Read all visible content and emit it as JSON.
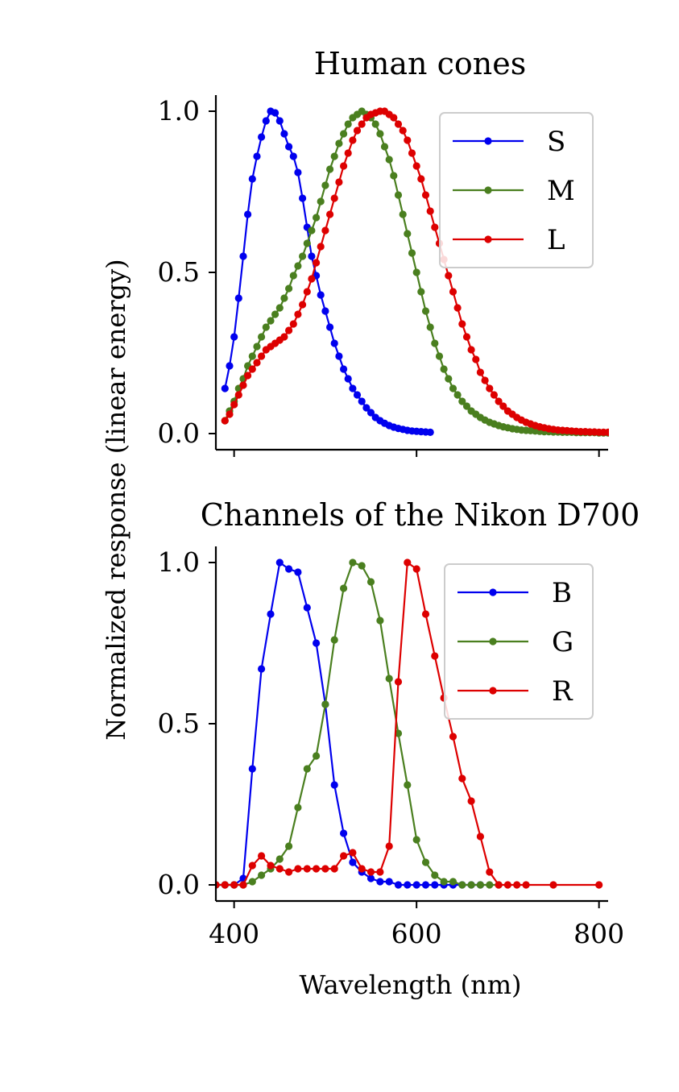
{
  "ylabel": "Normalized response (linear energy)",
  "chart_data": [
    {
      "type": "line",
      "title": "Human cones",
      "xlabel": "",
      "xlim": [
        380,
        810
      ],
      "ylim": [
        -0.05,
        1.05
      ],
      "xticks": [
        400,
        600,
        800
      ],
      "xticklabels": [
        "",
        "",
        ""
      ],
      "yticks": [
        0.0,
        0.5,
        1.0
      ],
      "yticklabels": [
        "0.0",
        "0.5",
        "1.0"
      ],
      "grid": false,
      "legend_position": "top-right",
      "series": [
        {
          "name": "S",
          "color": "#0000ee",
          "x": [
            390,
            395,
            400,
            405,
            410,
            415,
            420,
            425,
            430,
            435,
            440,
            445,
            450,
            455,
            460,
            465,
            470,
            475,
            480,
            485,
            490,
            495,
            500,
            505,
            510,
            515,
            520,
            525,
            530,
            535,
            540,
            545,
            550,
            555,
            560,
            565,
            570,
            575,
            580,
            585,
            590,
            595,
            600,
            605,
            610,
            615
          ],
          "y": [
            0.14,
            0.21,
            0.3,
            0.42,
            0.55,
            0.68,
            0.79,
            0.86,
            0.92,
            0.97,
            1.0,
            0.995,
            0.97,
            0.93,
            0.89,
            0.86,
            0.81,
            0.73,
            0.64,
            0.55,
            0.49,
            0.43,
            0.38,
            0.33,
            0.28,
            0.24,
            0.2,
            0.17,
            0.14,
            0.12,
            0.1,
            0.08,
            0.065,
            0.05,
            0.04,
            0.032,
            0.025,
            0.02,
            0.016,
            0.013,
            0.01,
            0.008,
            0.007,
            0.006,
            0.005,
            0.004
          ]
        },
        {
          "name": "M",
          "color": "#4a7f1f",
          "x": [
            390,
            395,
            400,
            405,
            410,
            415,
            420,
            425,
            430,
            435,
            440,
            445,
            450,
            455,
            460,
            465,
            470,
            475,
            480,
            485,
            490,
            495,
            500,
            505,
            510,
            515,
            520,
            525,
            530,
            535,
            540,
            545,
            550,
            555,
            560,
            565,
            570,
            575,
            580,
            585,
            590,
            595,
            600,
            605,
            610,
            615,
            620,
            625,
            630,
            635,
            640,
            645,
            650,
            655,
            660,
            665,
            670,
            675,
            680,
            685,
            690,
            695,
            700,
            705,
            710,
            715,
            720,
            725,
            730,
            735,
            740,
            745,
            750,
            755,
            760,
            765,
            770,
            775,
            780,
            785,
            790,
            795,
            800,
            805,
            810,
            815,
            820,
            825,
            830
          ],
          "y": [
            0.04,
            0.07,
            0.1,
            0.14,
            0.17,
            0.21,
            0.24,
            0.27,
            0.3,
            0.33,
            0.35,
            0.37,
            0.39,
            0.42,
            0.45,
            0.49,
            0.52,
            0.55,
            0.59,
            0.63,
            0.67,
            0.72,
            0.77,
            0.82,
            0.86,
            0.9,
            0.93,
            0.96,
            0.98,
            0.99,
            1.0,
            0.99,
            0.98,
            0.96,
            0.93,
            0.89,
            0.85,
            0.8,
            0.74,
            0.68,
            0.62,
            0.56,
            0.5,
            0.44,
            0.38,
            0.33,
            0.28,
            0.24,
            0.2,
            0.17,
            0.14,
            0.12,
            0.1,
            0.085,
            0.07,
            0.06,
            0.05,
            0.042,
            0.035,
            0.03,
            0.025,
            0.021,
            0.018,
            0.015,
            0.013,
            0.011,
            0.01,
            0.009,
            0.008,
            0.007,
            0.006,
            0.006,
            0.005,
            0.005,
            0.004,
            0.004,
            0.004,
            0.003,
            0.003,
            0.003,
            0.003,
            0.003,
            0.002,
            0.002,
            0.002,
            0.002,
            0.002,
            0.002,
            0.002
          ]
        },
        {
          "name": "L",
          "color": "#dd0000",
          "x": [
            390,
            395,
            400,
            405,
            410,
            415,
            420,
            425,
            430,
            435,
            440,
            445,
            450,
            455,
            460,
            465,
            470,
            475,
            480,
            485,
            490,
            495,
            500,
            505,
            510,
            515,
            520,
            525,
            530,
            535,
            540,
            545,
            550,
            555,
            560,
            565,
            570,
            575,
            580,
            585,
            590,
            595,
            600,
            605,
            610,
            615,
            620,
            625,
            630,
            635,
            640,
            645,
            650,
            655,
            660,
            665,
            670,
            675,
            680,
            685,
            690,
            695,
            700,
            705,
            710,
            715,
            720,
            725,
            730,
            735,
            740,
            745,
            750,
            755,
            760,
            765,
            770,
            775,
            780,
            785,
            790,
            795,
            800,
            805,
            810,
            815,
            820,
            825,
            830
          ],
          "y": [
            0.04,
            0.06,
            0.09,
            0.12,
            0.15,
            0.18,
            0.2,
            0.22,
            0.24,
            0.26,
            0.27,
            0.28,
            0.29,
            0.3,
            0.32,
            0.34,
            0.37,
            0.4,
            0.44,
            0.48,
            0.53,
            0.58,
            0.63,
            0.68,
            0.73,
            0.78,
            0.83,
            0.87,
            0.91,
            0.94,
            0.96,
            0.98,
            0.99,
            0.995,
            1.0,
            1.0,
            0.99,
            0.98,
            0.96,
            0.94,
            0.91,
            0.87,
            0.83,
            0.79,
            0.74,
            0.69,
            0.64,
            0.59,
            0.54,
            0.49,
            0.44,
            0.39,
            0.34,
            0.3,
            0.26,
            0.23,
            0.19,
            0.165,
            0.14,
            0.12,
            0.1,
            0.085,
            0.07,
            0.06,
            0.05,
            0.042,
            0.035,
            0.03,
            0.025,
            0.021,
            0.018,
            0.015,
            0.013,
            0.011,
            0.01,
            0.009,
            0.008,
            0.007,
            0.006,
            0.006,
            0.005,
            0.005,
            0.004,
            0.004,
            0.004,
            0.003,
            0.003,
            0.003,
            0.003
          ]
        }
      ]
    },
    {
      "type": "line",
      "title": "Channels of the Nikon D700",
      "xlabel": "Wavelength (nm)",
      "xlim": [
        380,
        810
      ],
      "ylim": [
        -0.05,
        1.05
      ],
      "xticks": [
        400,
        600,
        800
      ],
      "xticklabels": [
        "400",
        "600",
        "800"
      ],
      "yticks": [
        0.0,
        0.5,
        1.0
      ],
      "yticklabels": [
        "0.0",
        "0.5",
        "1.0"
      ],
      "grid": false,
      "legend_position": "top-right",
      "series": [
        {
          "name": "B",
          "color": "#0000ee",
          "x": [
            380,
            390,
            400,
            410,
            420,
            430,
            440,
            450,
            460,
            470,
            480,
            490,
            500,
            510,
            520,
            530,
            540,
            550,
            560,
            570,
            580,
            590,
            600,
            610,
            620,
            630,
            640,
            650,
            660,
            670
          ],
          "y": [
            0.0,
            0.0,
            0.0,
            0.02,
            0.36,
            0.67,
            0.84,
            1.0,
            0.98,
            0.97,
            0.86,
            0.75,
            0.56,
            0.31,
            0.16,
            0.07,
            0.04,
            0.02,
            0.01,
            0.01,
            0.0,
            0.0,
            0.0,
            0.0,
            0.0,
            0.0,
            0.0,
            0.0,
            0.0,
            0.0
          ]
        },
        {
          "name": "G",
          "color": "#4a7f1f",
          "x": [
            380,
            390,
            400,
            410,
            420,
            430,
            440,
            450,
            460,
            470,
            480,
            490,
            500,
            510,
            520,
            530,
            540,
            550,
            560,
            570,
            580,
            590,
            600,
            610,
            620,
            630,
            640,
            650,
            660,
            670,
            680,
            690
          ],
          "y": [
            0.0,
            0.0,
            0.0,
            0.0,
            0.01,
            0.03,
            0.05,
            0.08,
            0.12,
            0.24,
            0.36,
            0.4,
            0.56,
            0.76,
            0.92,
            1.0,
            0.99,
            0.94,
            0.82,
            0.64,
            0.47,
            0.31,
            0.14,
            0.07,
            0.03,
            0.01,
            0.01,
            0.0,
            0.0,
            0.0,
            0.0,
            0.0
          ]
        },
        {
          "name": "R",
          "color": "#dd0000",
          "x": [
            380,
            390,
            400,
            410,
            420,
            430,
            440,
            450,
            460,
            470,
            480,
            490,
            500,
            510,
            520,
            530,
            540,
            550,
            560,
            570,
            580,
            590,
            600,
            610,
            620,
            630,
            640,
            650,
            660,
            670,
            680,
            690,
            700,
            710,
            720,
            750,
            800
          ],
          "y": [
            0.0,
            0.0,
            0.0,
            0.0,
            0.06,
            0.09,
            0.06,
            0.05,
            0.04,
            0.05,
            0.05,
            0.05,
            0.05,
            0.05,
            0.09,
            0.1,
            0.05,
            0.04,
            0.04,
            0.12,
            0.63,
            1.0,
            0.98,
            0.84,
            0.71,
            0.58,
            0.46,
            0.33,
            0.26,
            0.15,
            0.04,
            0.0,
            0.0,
            0.0,
            0.0,
            0.0,
            0.0
          ]
        }
      ]
    }
  ]
}
